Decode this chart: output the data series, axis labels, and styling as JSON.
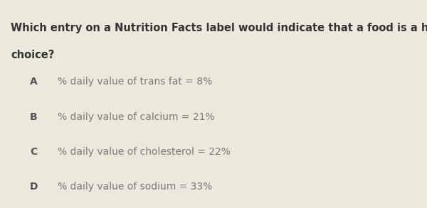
{
  "background_color": "#ede8dc",
  "question_line1": "Which entry on a Nutrition Facts label would indicate that a food is a healthy",
  "question_line2": "choice?",
  "question_fontsize": 10.5,
  "question_color": "#333333",
  "question_bold": true,
  "options": [
    {
      "label": "A",
      "text": "% daily value of trans fat = 8%"
    },
    {
      "label": "B",
      "text": "% daily value of calcium = 21%"
    },
    {
      "label": "C",
      "text": "% daily value of cholesterol = 22%"
    },
    {
      "label": "D",
      "text": "% daily value of sodium = 33%"
    }
  ],
  "option_label_fontsize": 10,
  "option_text_fontsize": 10,
  "option_color": "#7a7a7a",
  "label_color": "#555555",
  "label_bold": true,
  "fig_width": 6.0,
  "fig_height": 2.93,
  "dpi": 100
}
